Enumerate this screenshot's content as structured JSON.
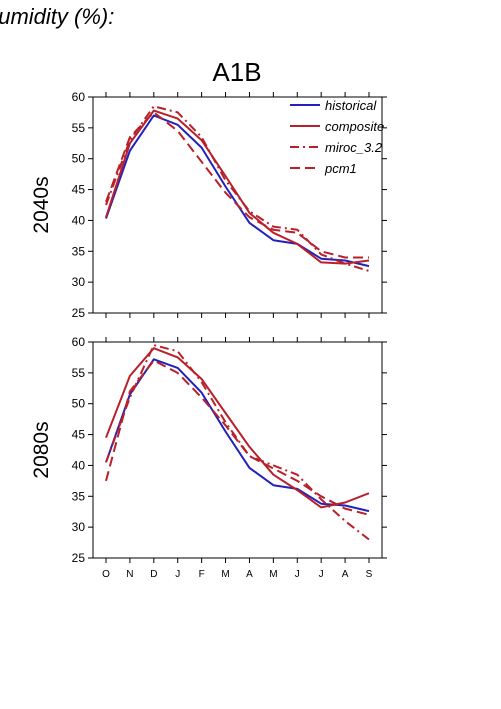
{
  "page": {
    "heading": "humidity (%):"
  },
  "chart_data": {
    "type": "line",
    "title": "A1B",
    "categories": [
      "O",
      "N",
      "D",
      "J",
      "F",
      "M",
      "A",
      "M",
      "J",
      "J",
      "A",
      "S"
    ],
    "ylim": [
      25,
      60
    ],
    "yticks": [
      25,
      30,
      35,
      40,
      45,
      50,
      55,
      60
    ],
    "legend": {
      "placement": "top-right"
    },
    "line_styles": {
      "historical": "solid",
      "composite": "solid",
      "miroc_3.2": "dash-dot",
      "pcm1": "dashed"
    },
    "colors": {
      "historical": "#2222bb",
      "composite": "#b8202a",
      "miroc_3.2": "#b8202a",
      "pcm1": "#b8202a"
    },
    "panels": [
      {
        "label": "2040s",
        "series": [
          {
            "name": "historical",
            "values": [
              40.3,
              51.3,
              57.0,
              55.5,
              51.8,
              45.5,
              39.6,
              36.8,
              36.2,
              33.8,
              33.5,
              32.6
            ]
          },
          {
            "name": "composite",
            "values": [
              40.5,
              52.5,
              57.8,
              56.5,
              53.0,
              47.2,
              41.2,
              38.0,
              36.2,
              33.2,
              33.0,
              33.5
            ]
          },
          {
            "name": "miroc_3.2",
            "values": [
              42.5,
              53.0,
              58.5,
              57.5,
              53.5,
              46.5,
              41.5,
              39.0,
              38.5,
              34.5,
              33.0,
              31.8
            ]
          },
          {
            "name": "pcm1",
            "values": [
              43.0,
              53.5,
              57.5,
              54.5,
              49.5,
              44.5,
              40.5,
              38.5,
              38.0,
              35.0,
              34.0,
              34.0
            ]
          }
        ]
      },
      {
        "label": "2080s",
        "series": [
          {
            "name": "historical",
            "values": [
              40.5,
              51.5,
              57.2,
              55.8,
              51.8,
              45.5,
              39.6,
              36.8,
              36.2,
              33.8,
              33.5,
              32.6
            ]
          },
          {
            "name": "composite",
            "values": [
              44.5,
              54.5,
              59.0,
              57.5,
              54.0,
              48.5,
              43.0,
              38.5,
              36.0,
              33.2,
              34.0,
              35.5
            ]
          },
          {
            "name": "miroc_3.2",
            "values": [
              40.5,
              51.0,
              59.5,
              58.5,
              53.5,
              47.0,
              41.5,
              40.0,
              38.5,
              34.5,
              31.0,
              28.0
            ]
          },
          {
            "name": "pcm1",
            "values": [
              37.5,
              52.0,
              57.0,
              55.0,
              51.0,
              46.5,
              41.5,
              39.5,
              37.5,
              35.0,
              33.0,
              32.0
            ]
          }
        ]
      }
    ]
  }
}
